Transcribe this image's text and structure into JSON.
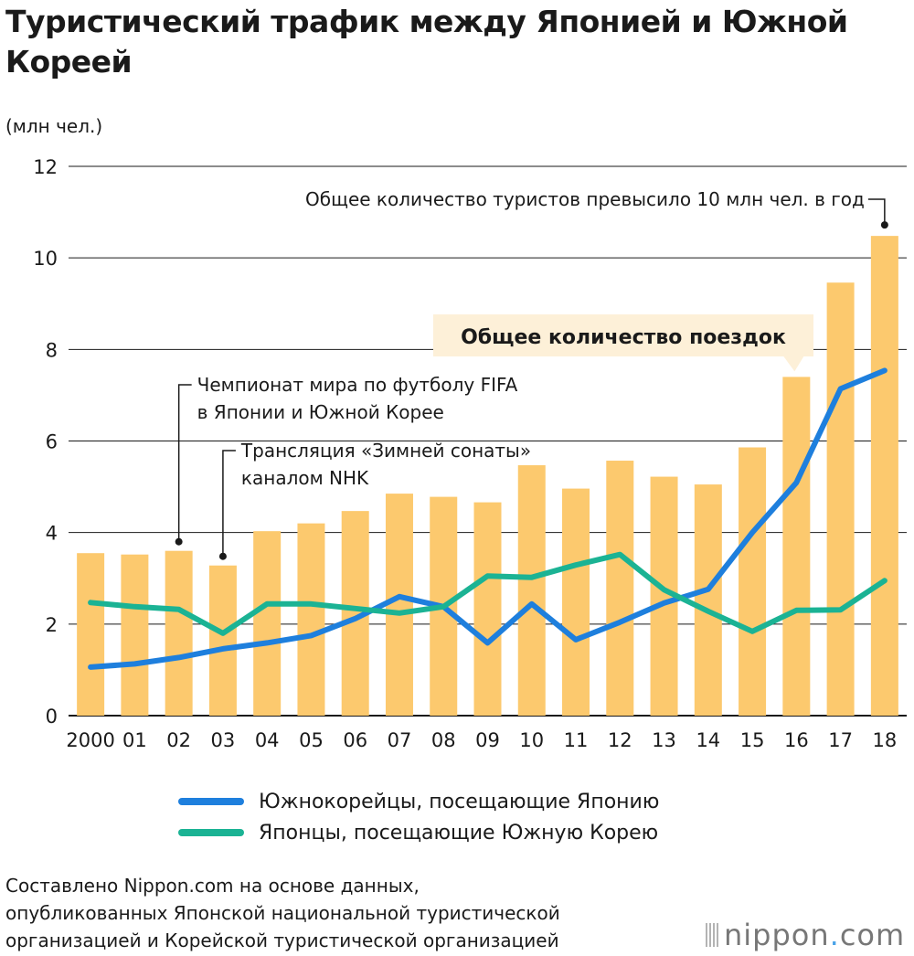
{
  "title": "Туристический трафик между Японией и Южной Кореей",
  "unit_label": "(млн чел.)",
  "colors": {
    "bar": "#FCC96E",
    "korean_line": "#1E7FDD",
    "japanese_line": "#1BB394",
    "grid": "#1a1a1a",
    "callout_bg": "#FDF0D8"
  },
  "legend": [
    {
      "label": "Южнокорейцы, посещающие Японию",
      "color": "#1E7FDD"
    },
    {
      "label": "Японцы, посещающие Южную Корею",
      "color": "#1BB394"
    }
  ],
  "source": [
    "Составлено Nippon.com на основе данных,",
    "опубликованных Японской национальной туристической",
    "организацией и Корейской туристической организацией"
  ],
  "logo": {
    "brand": "nippon",
    "dot": ".",
    "tld": "com"
  },
  "chart_data": {
    "type": "bar",
    "categories": [
      "2000",
      "01",
      "02",
      "03",
      "04",
      "05",
      "06",
      "07",
      "08",
      "09",
      "10",
      "11",
      "12",
      "13",
      "14",
      "15",
      "16",
      "17",
      "18"
    ],
    "ylim": [
      0,
      12
    ],
    "yticks": [
      0,
      2,
      4,
      6,
      8,
      10,
      12
    ],
    "grid": true,
    "bars": {
      "name": "Общее количество поездок",
      "values": [
        3.55,
        3.52,
        3.6,
        3.28,
        4.03,
        4.2,
        4.47,
        4.85,
        4.78,
        4.66,
        5.47,
        4.96,
        5.57,
        5.22,
        5.05,
        5.86,
        7.4,
        9.46,
        10.48
      ]
    },
    "series": [
      {
        "name": "Южнокорейцы, посещающие Японию",
        "values": [
          1.06,
          1.13,
          1.27,
          1.46,
          1.59,
          1.75,
          2.12,
          2.6,
          2.38,
          1.59,
          2.44,
          1.66,
          2.04,
          2.46,
          2.76,
          4.0,
          5.09,
          7.14,
          7.54
        ]
      },
      {
        "name": "Японцы, посещающие Южную Корею",
        "values": [
          2.47,
          2.38,
          2.32,
          1.8,
          2.44,
          2.44,
          2.34,
          2.24,
          2.38,
          3.05,
          3.02,
          3.29,
          3.52,
          2.75,
          2.28,
          1.84,
          2.3,
          2.31,
          2.95
        ]
      }
    ],
    "annotations": [
      {
        "text": "Общее количество поездок",
        "category": "16",
        "style": "callout"
      },
      {
        "text": "Общее количество туристов превысило 10 млн чел. в год",
        "category": "18"
      },
      {
        "text": "Чемпионат мира по футболу FIFA",
        "text2": "в Японии и Южной Корее",
        "category": "02"
      },
      {
        "text": "Трансляция «Зимней сонаты»",
        "text2": "каналом NHK",
        "category": "03"
      }
    ]
  }
}
